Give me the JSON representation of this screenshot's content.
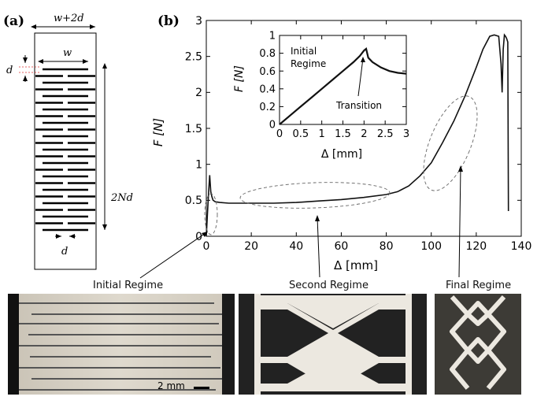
{
  "panels": {
    "a_label": "(a)",
    "b_label": "(b)"
  },
  "schematic": {
    "outer_width_label": "w+2d",
    "slit_width_label": "w",
    "gap_label_top": "d",
    "length_label": "2Nd",
    "gap_label_bottom": "d"
  },
  "chart_data": [
    {
      "type": "line",
      "title": "",
      "xlabel": "Δ [mm]",
      "ylabel": "F [N]",
      "xlim": [
        0,
        140
      ],
      "ylim": [
        0,
        3
      ],
      "xticks": [
        0,
        20,
        40,
        60,
        80,
        100,
        120,
        140
      ],
      "yticks": [
        0,
        0.5,
        1,
        1.5,
        2,
        2.5,
        3
      ],
      "xtick_labels": [
        "0",
        "20",
        "40",
        "60",
        "80",
        "100",
        "120",
        "140"
      ],
      "ytick_labels": [
        "0",
        "0.5",
        "1",
        "1.5",
        "2",
        "2.5",
        "3"
      ],
      "grid": false,
      "series": [
        {
          "x": [
            0,
            0.5,
            1,
            1.5,
            2,
            2.5,
            3,
            4,
            6,
            10,
            15,
            20,
            30,
            40,
            50,
            60,
            70,
            80,
            85,
            90,
            95,
            100,
            105,
            110,
            115,
            120,
            123,
            126,
            128,
            130,
            131,
            131.5,
            132,
            132.5,
            133,
            133.5,
            134,
            134.3
          ],
          "y": [
            0,
            0.3,
            0.6,
            0.85,
            0.62,
            0.55,
            0.5,
            0.48,
            0.47,
            0.46,
            0.46,
            0.46,
            0.46,
            0.47,
            0.49,
            0.51,
            0.54,
            0.58,
            0.62,
            0.7,
            0.84,
            1.02,
            1.3,
            1.6,
            1.95,
            2.35,
            2.6,
            2.78,
            2.8,
            2.78,
            2.4,
            2.0,
            2.6,
            2.8,
            2.78,
            2.75,
            2.7,
            0.35
          ]
        }
      ],
      "annotations": [
        "Initial Regime",
        "Second Regime",
        "Final Regime"
      ]
    },
    {
      "type": "line",
      "title": "",
      "xlabel": "Δ [mm]",
      "ylabel": "F [N]",
      "xlim": [
        0,
        3
      ],
      "ylim": [
        0,
        1
      ],
      "xticks": [
        0,
        0.5,
        1,
        1.5,
        2,
        2.5,
        3
      ],
      "yticks": [
        0,
        0.2,
        0.4,
        0.6,
        0.8,
        1
      ],
      "xtick_labels": [
        "0",
        "0.5",
        "1",
        "1.5",
        "2",
        "2.5",
        "3"
      ],
      "ytick_labels": [
        "0",
        "0.2",
        "0.4",
        "0.6",
        "0.8",
        "1"
      ],
      "grid": false,
      "series": [
        {
          "x": [
            0,
            0.25,
            0.5,
            0.75,
            1.0,
            1.25,
            1.5,
            1.75,
            1.9,
            2.0,
            2.05,
            2.1,
            2.2,
            2.4,
            2.6,
            2.8,
            3.0
          ],
          "y": [
            0,
            0.1,
            0.2,
            0.3,
            0.4,
            0.5,
            0.6,
            0.7,
            0.77,
            0.83,
            0.85,
            0.75,
            0.7,
            0.64,
            0.6,
            0.58,
            0.57
          ]
        }
      ],
      "annotations": [
        "Initial Regime",
        "Transition"
      ]
    }
  ],
  "regimes": {
    "initial": "Initial Regime",
    "second": "Second Regime",
    "final": "Final Regime"
  },
  "inset": {
    "initial_line1": "Initial",
    "initial_line2": "Regime",
    "transition": "Transition"
  },
  "scale_bar": {
    "label": "2 mm"
  }
}
